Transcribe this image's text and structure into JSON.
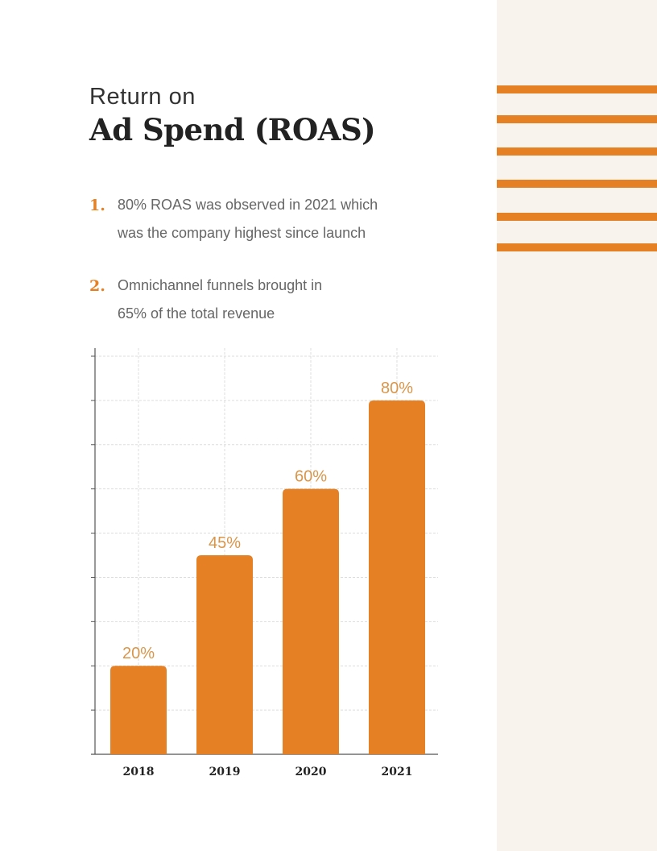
{
  "title": {
    "line1": "Return on",
    "line2": "Ad Spend (ROAS)"
  },
  "points": [
    {
      "number": "1.",
      "line1": "80% ROAS was observed in 2021 which",
      "line2": "was the company highest since launch"
    },
    {
      "number": "2.",
      "line1": "Omnichannel funnels brought in",
      "line2": "65% of the total revenue"
    }
  ],
  "colors": {
    "accent": "#e58025",
    "label": "#d9964a",
    "side_panel": "#f8f3ed"
  },
  "chart_data": {
    "type": "bar",
    "categories": [
      "2018",
      "2019",
      "2020",
      "2021"
    ],
    "values": [
      20,
      45,
      60,
      80
    ],
    "data_labels": [
      "20%",
      "45%",
      "60%",
      "80%"
    ],
    "ylim": [
      0,
      90
    ],
    "y_tick_step": 10,
    "y_tick_labels_shown": false,
    "grid": true,
    "title": "",
    "xlabel": "",
    "ylabel": ""
  }
}
